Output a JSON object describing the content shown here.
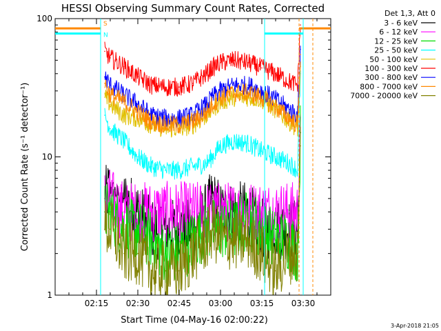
{
  "chart_data": {
    "type": "line",
    "title": "HESSI Observing Summary Count Rates, Corrected",
    "xlabel": "Start Time (04-May-16 02:00:22)",
    "ylabel": "Corrected Count Rate (s⁻¹ detector⁻¹)",
    "x_unit": "UT minutes after 02:00",
    "xlim": [
      0,
      100
    ],
    "ylim": [
      1,
      100
    ],
    "yscale": "log",
    "x_ticks": [
      {
        "x": 15,
        "label": "02:15"
      },
      {
        "x": 30,
        "label": "02:30"
      },
      {
        "x": 45,
        "label": "02:45"
      },
      {
        "x": 60,
        "label": "03:00"
      },
      {
        "x": 75,
        "label": "03:15"
      },
      {
        "x": 90,
        "label": "03:30"
      }
    ],
    "y_ticks": [
      {
        "y": 1,
        "label": "1"
      },
      {
        "y": 10,
        "label": "10"
      },
      {
        "y": 100,
        "label": "100"
      }
    ],
    "legend_title": "Det 1,3, Att 0",
    "legend_position": "right",
    "series": [
      {
        "name": "3 - 6 keV",
        "color": "#000000",
        "x": [
          18,
          20,
          25,
          30,
          35,
          40,
          45,
          50,
          55,
          57,
          60,
          65,
          70,
          75,
          80,
          85,
          88,
          89
        ],
        "y": [
          5,
          6,
          5,
          4,
          3,
          3,
          3,
          3,
          4,
          5,
          4,
          4,
          4,
          3,
          3,
          3,
          3,
          15
        ]
      },
      {
        "name": "6 - 12 keV",
        "color": "#ff00ff",
        "x": [
          18,
          20,
          25,
          30,
          35,
          40,
          45,
          50,
          55,
          57,
          60,
          65,
          70,
          75,
          80,
          85,
          88,
          89
        ],
        "y": [
          5,
          5,
          4,
          4,
          4,
          4,
          4,
          4,
          4,
          4,
          4,
          4,
          4,
          4,
          4,
          4,
          4,
          15
        ]
      },
      {
        "name": "12 - 25 keV",
        "color": "#00dd00",
        "x": [
          18,
          20,
          25,
          30,
          35,
          40,
          45,
          50,
          55,
          57,
          60,
          65,
          70,
          75,
          80,
          85,
          88,
          89
        ],
        "y": [
          4,
          4,
          3,
          3,
          2.5,
          2,
          2,
          2.5,
          3,
          3,
          3,
          3,
          3.5,
          3,
          2.5,
          2.5,
          2,
          15
        ]
      },
      {
        "name": "25 - 50 keV",
        "color": "#00ffff",
        "x": [
          18,
          20,
          25,
          30,
          35,
          40,
          45,
          50,
          55,
          57,
          60,
          65,
          70,
          75,
          80,
          85,
          88,
          89
        ],
        "y": [
          20,
          16,
          13,
          10,
          8.5,
          8,
          8,
          8.5,
          9,
          10,
          12,
          13,
          12.5,
          11,
          10,
          9,
          8,
          40
        ]
      },
      {
        "name": "50 - 100 keV",
        "color": "#e0c000",
        "x": [
          18,
          20,
          25,
          30,
          35,
          40,
          45,
          50,
          55,
          57,
          60,
          65,
          70,
          75,
          80,
          85,
          88,
          89
        ],
        "y": [
          27,
          24,
          20,
          19,
          17,
          16,
          16,
          17,
          20,
          22,
          25,
          27,
          27,
          26,
          22,
          18,
          16,
          45
        ]
      },
      {
        "name": "100 - 300 keV",
        "color": "#ff0000",
        "x": [
          18,
          20,
          25,
          30,
          35,
          40,
          45,
          50,
          55,
          57,
          60,
          65,
          70,
          75,
          80,
          85,
          88,
          89
        ],
        "y": [
          58,
          52,
          45,
          38,
          33,
          32,
          32,
          34,
          40,
          44,
          48,
          50,
          48,
          44,
          40,
          35,
          33,
          90
        ]
      },
      {
        "name": "300 - 800 keV",
        "color": "#0000ff",
        "x": [
          18,
          20,
          25,
          30,
          35,
          40,
          45,
          50,
          55,
          57,
          60,
          65,
          70,
          75,
          80,
          85,
          88,
          89
        ],
        "y": [
          38,
          33,
          28,
          24,
          20,
          19,
          19,
          20,
          24,
          27,
          30,
          33,
          33,
          30,
          26,
          22,
          20,
          60
        ]
      },
      {
        "name": "800 - 7000 keV",
        "color": "#ff8800",
        "x": [
          18,
          20,
          25,
          30,
          35,
          40,
          45,
          50,
          55,
          57,
          60,
          65,
          70,
          75,
          80,
          85,
          88,
          89
        ],
        "y": [
          34,
          28,
          25,
          21,
          18,
          17,
          17,
          18,
          21,
          24,
          27,
          29,
          29,
          27,
          23,
          19,
          17,
          55
        ]
      },
      {
        "name": "7000 - 20000 keV",
        "color": "#808000",
        "x": [
          18,
          20,
          25,
          30,
          35,
          40,
          45,
          50,
          55,
          57,
          60,
          65,
          70,
          75,
          80,
          85,
          88,
          89
        ],
        "y": [
          3,
          3,
          2,
          2,
          1.5,
          1.5,
          1.5,
          2,
          2.5,
          3,
          2.5,
          2.5,
          2.5,
          2,
          1.5,
          2,
          2,
          12
        ]
      }
    ],
    "flag_bars": [
      {
        "name": "S",
        "label": "S",
        "color": "#ff8800",
        "segments": [
          [
            0,
            16.5
          ],
          [
            88.5,
            100
          ]
        ],
        "y": 85
      },
      {
        "name": "N",
        "label": "N",
        "color": "#00ffff",
        "segments": [
          [
            0,
            16.5
          ],
          [
            76,
            90
          ]
        ],
        "y": 78
      }
    ],
    "vlines": [
      {
        "x": 16.5,
        "color": "#ff8800",
        "style": "dashed"
      },
      {
        "x": 16.5,
        "color": "#00ffff",
        "style": "solid"
      },
      {
        "x": 76,
        "color": "#00ffff",
        "style": "solid"
      },
      {
        "x": 88.5,
        "color": "#ff8800",
        "style": "dashed"
      },
      {
        "x": 90,
        "color": "#00ffff",
        "style": "solid"
      },
      {
        "x": 93.5,
        "color": "#ff8800",
        "style": "dashed"
      }
    ],
    "timestamp": "3-Apr-2018 21:05",
    "grid": false
  }
}
